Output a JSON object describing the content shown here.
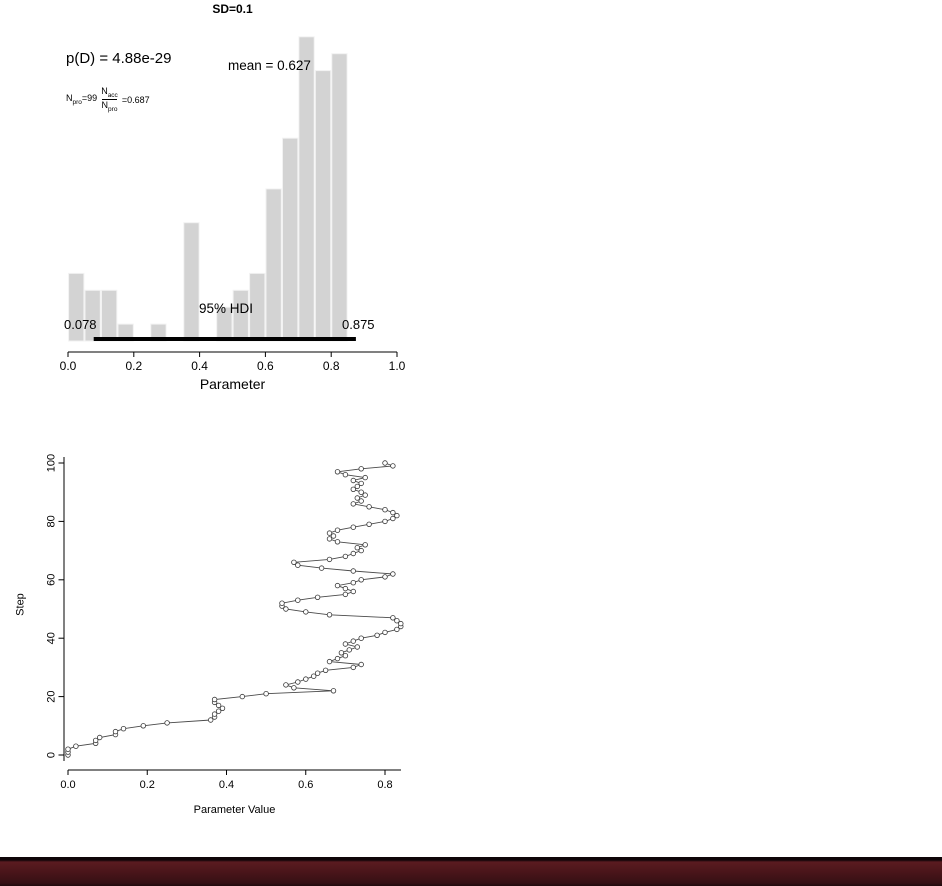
{
  "page": {
    "background": "#ffffff"
  },
  "chart_data": [
    {
      "type": "bar",
      "subtype": "histogram",
      "title": "SD=0.1",
      "xlabel": "Parameter",
      "ylabel": "",
      "xlim": [
        0.0,
        1.0
      ],
      "x_ticks": [
        "0.0",
        "0.2",
        "0.4",
        "0.6",
        "0.8",
        "1.0"
      ],
      "bin_start": 0.0,
      "bin_width": 0.05,
      "counts": [
        4,
        3,
        3,
        1,
        0,
        1,
        0,
        7,
        0,
        2,
        3,
        4,
        9,
        12,
        18,
        16,
        17
      ],
      "bar_color": "#d3d3d3",
      "bar_border": "#f2f2f2",
      "annotations": {
        "p_d": "p(D) = 4.88e-29",
        "mean": "mean = 0.627",
        "n": {
          "base": "N",
          "sub": "pro",
          "eq": "=99"
        },
        "ratio": {
          "num_base": "N",
          "num_sub": "acc",
          "den_base": "N",
          "den_sub": "pro",
          "eq": "=0.687"
        }
      },
      "hdi": {
        "label": "95% HDI",
        "low": 0.078,
        "high": 0.875,
        "low_label": "0.078",
        "high_label": "0.875"
      }
    },
    {
      "type": "line",
      "subtype": "mcmc-trace",
      "xlabel": "Parameter Value",
      "ylabel": "Step",
      "x_ticks": [
        "0.0",
        "0.2",
        "0.4",
        "0.6",
        "0.8"
      ],
      "y_ticks": [
        "0",
        "20",
        "40",
        "60",
        "80",
        "100"
      ],
      "xlim": [
        0.0,
        0.9
      ],
      "ylim": [
        0,
        100
      ],
      "marker": "open-circle",
      "values": [
        0.0,
        0.0,
        0.0,
        0.02,
        0.07,
        0.07,
        0.08,
        0.12,
        0.12,
        0.14,
        0.19,
        0.25,
        0.36,
        0.37,
        0.37,
        0.38,
        0.39,
        0.38,
        0.37,
        0.37,
        0.44,
        0.5,
        0.67,
        0.57,
        0.55,
        0.58,
        0.6,
        0.62,
        0.63,
        0.65,
        0.72,
        0.74,
        0.66,
        0.68,
        0.7,
        0.69,
        0.71,
        0.73,
        0.7,
        0.72,
        0.74,
        0.78,
        0.8,
        0.83,
        0.84,
        0.84,
        0.83,
        0.82,
        0.66,
        0.6,
        0.55,
        0.54,
        0.54,
        0.58,
        0.63,
        0.7,
        0.72,
        0.7,
        0.68,
        0.72,
        0.74,
        0.8,
        0.82,
        0.72,
        0.64,
        0.58,
        0.57,
        0.66,
        0.7,
        0.72,
        0.74,
        0.73,
        0.75,
        0.68,
        0.66,
        0.67,
        0.66,
        0.68,
        0.72,
        0.76,
        0.8,
        0.82,
        0.83,
        0.82,
        0.8,
        0.76,
        0.72,
        0.74,
        0.73,
        0.75,
        0.74,
        0.72,
        0.73,
        0.74,
        0.72,
        0.75,
        0.7,
        0.68,
        0.74,
        0.82,
        0.8
      ]
    }
  ],
  "footer": {
    "colors": {
      "edge": "#0e0508",
      "bar_top": "#5a1b20",
      "bar_mid": "#4a151a",
      "bar_bottom": "#351014",
      "edge2": "#1f0a0d"
    }
  }
}
